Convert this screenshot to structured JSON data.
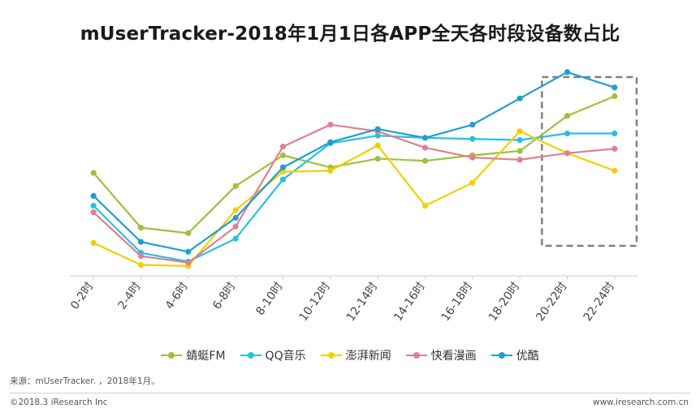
{
  "title": "mUserTracker-2018年1月1日各APP全天各时段设备数占比",
  "source": "来源：mUserTracker. ，2018年1月。",
  "copyright": "©2018.3 iResearch Inc",
  "site": "www.iresearch.com.cn",
  "chart_data": {
    "type": "line",
    "title": "mUserTracker-2018年1月1日各APP全天各时段设备数占比",
    "categories": [
      "0-2时",
      "2-4时",
      "4-6时",
      "6-8时",
      "8-10时",
      "10-12时",
      "12-14时",
      "14-16时",
      "16-18时",
      "18-20时",
      "20-22时",
      "22-24时"
    ],
    "ylim": [
      0,
      100
    ],
    "grid": false,
    "legend_position": "bottom",
    "annotation": "dashed-box highlighting 20-22时 and 22-24时",
    "series": [
      {
        "name": "蜻蜓FM",
        "color": "#9dc13b",
        "values": [
          47,
          22,
          19.5,
          41,
          55,
          49.5,
          53.5,
          52.5,
          55,
          57,
          73,
          82
        ]
      },
      {
        "name": "QQ音乐",
        "color": "#29c0df",
        "values": [
          32,
          10.5,
          6.5,
          17,
          44,
          60.5,
          64,
          63,
          62.5,
          62,
          65,
          65
        ]
      },
      {
        "name": "澎湃新闻",
        "color": "#f0d000",
        "values": [
          15,
          5,
          4.5,
          30,
          47.5,
          48,
          59.5,
          32,
          42.5,
          66,
          56,
          48
        ]
      },
      {
        "name": "快看漫画",
        "color": "#e07e94",
        "values": [
          29,
          9,
          6,
          22.5,
          59,
          69,
          66,
          58.5,
          54,
          53,
          56,
          58
        ]
      },
      {
        "name": "优酷",
        "color": "#1e9fd1",
        "values": [
          36.5,
          15.5,
          11,
          26.5,
          49.5,
          61,
          67,
          63,
          69,
          81,
          93,
          86
        ]
      }
    ]
  }
}
